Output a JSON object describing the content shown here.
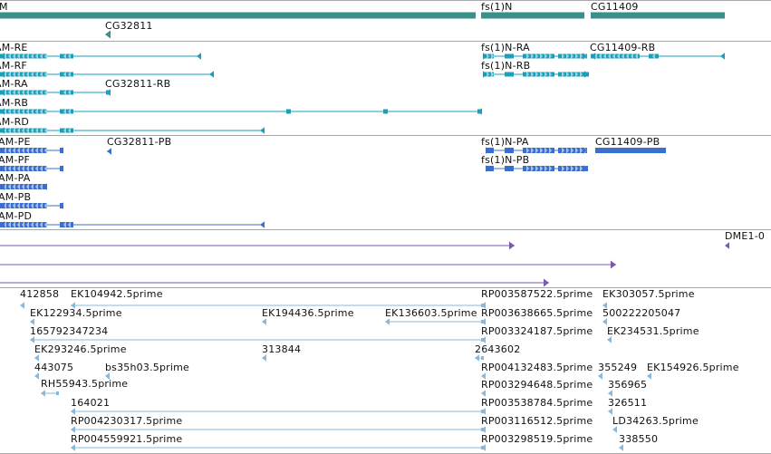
{
  "colors": {
    "gene": "#3a8f8a",
    "transcript": "#1aa0bb",
    "protein": "#3a6fd0",
    "alignment": "#7a5aaf",
    "est": "#88b8dc",
    "divider": "#a8a8a8",
    "label": "#111111"
  },
  "tracks": {
    "genes": {
      "features": [
        {
          "label": "M",
          "kind": "bar",
          "strand": "none"
        },
        {
          "label": "fs(1)N",
          "kind": "bar",
          "strand": "none"
        },
        {
          "label": "CG11409",
          "kind": "bar",
          "strand": "none"
        },
        {
          "label": "CG32811",
          "kind": "bar",
          "strand": "minus"
        }
      ]
    },
    "transcripts": {
      "features": [
        {
          "label": "AM-RE",
          "strand": "minus"
        },
        {
          "label": "AM-RF",
          "strand": "minus"
        },
        {
          "label": "AM-RA",
          "strand": "minus"
        },
        {
          "label": "AM-RB",
          "strand": "minus"
        },
        {
          "label": "AM-RD",
          "strand": "minus"
        },
        {
          "label": "CG32811-RB",
          "strand": "minus"
        },
        {
          "label": "fs(1)N-RA",
          "strand": "plus"
        },
        {
          "label": "fs(1)N-RB",
          "strand": "plus"
        },
        {
          "label": "CG11409-RB",
          "strand": "minus"
        }
      ]
    },
    "proteins": {
      "features": [
        {
          "label": "AAM-PE",
          "strand": "minus"
        },
        {
          "label": "AAM-PF",
          "strand": "minus"
        },
        {
          "label": "AAM-PA",
          "strand": "minus"
        },
        {
          "label": "AAM-PB",
          "strand": "minus"
        },
        {
          "label": "AAM-PD",
          "strand": "minus"
        },
        {
          "label": "CG32811-PB",
          "strand": "minus"
        },
        {
          "label": "fs(1)N-PA",
          "strand": "plus"
        },
        {
          "label": "fs(1)N-PB",
          "strand": "plus"
        },
        {
          "label": "CG11409-PB",
          "strand": "none"
        }
      ]
    },
    "alignments": {
      "features": [
        {
          "label": "",
          "strand": "plus"
        },
        {
          "label": "",
          "strand": "plus"
        },
        {
          "label": "",
          "strand": "plus"
        },
        {
          "label": "DME1-0",
          "strand": "minus"
        }
      ]
    },
    "ests": {
      "features": [
        {
          "label": "412858",
          "strand": "minus"
        },
        {
          "label": "EK104942.5prime",
          "strand": "minus"
        },
        {
          "label": "EK122934.5prime",
          "strand": "minus"
        },
        {
          "label": "165792347234",
          "strand": "minus"
        },
        {
          "label": "EK293246.5prime",
          "strand": "minus"
        },
        {
          "label": "443075",
          "strand": "minus"
        },
        {
          "label": "bs35h03.5prime",
          "strand": "minus"
        },
        {
          "label": "RH55943.5prime",
          "strand": "minus"
        },
        {
          "label": "164021",
          "strand": "minus"
        },
        {
          "label": "RP004230317.5prime",
          "strand": "minus"
        },
        {
          "label": "RP004559921.5prime",
          "strand": "minus"
        },
        {
          "label": "EK194436.5prime",
          "strand": "minus"
        },
        {
          "label": "313844",
          "strand": "minus"
        },
        {
          "label": "EK136603.5prime",
          "strand": "minus"
        },
        {
          "label": "RP003587522.5prime",
          "strand": "minus"
        },
        {
          "label": "RP003638665.5prime",
          "strand": "minus"
        },
        {
          "label": "RP003324187.5prime",
          "strand": "minus"
        },
        {
          "label": "2643602",
          "strand": "minus"
        },
        {
          "label": "RP004132483.5prime",
          "strand": "minus"
        },
        {
          "label": "RP003294648.5prime",
          "strand": "minus"
        },
        {
          "label": "RP003538784.5prime",
          "strand": "minus"
        },
        {
          "label": "RP003116512.5prime",
          "strand": "minus"
        },
        {
          "label": "RP003298519.5prime",
          "strand": "minus"
        },
        {
          "label": "EK303057.5prime",
          "strand": "minus"
        },
        {
          "label": "500222205047",
          "strand": "minus"
        },
        {
          "label": "EK234531.5prime",
          "strand": "minus"
        },
        {
          "label": "355249",
          "strand": "minus"
        },
        {
          "label": "EK154926.5prime",
          "strand": "minus"
        },
        {
          "label": "356965",
          "strand": "minus"
        },
        {
          "label": "326511",
          "strand": "minus"
        },
        {
          "label": "LD34263.5prime",
          "strand": "minus"
        },
        {
          "label": "338550",
          "strand": "minus"
        }
      ]
    }
  }
}
